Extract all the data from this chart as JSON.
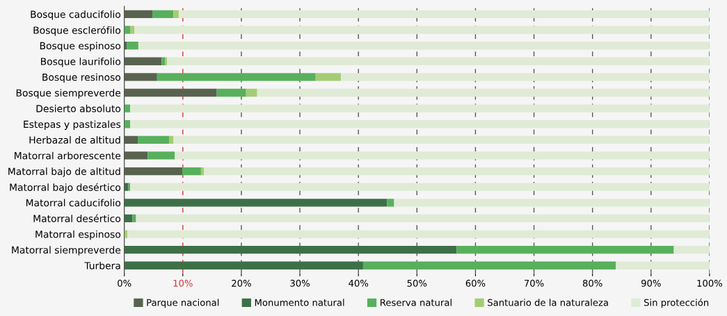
{
  "chart_data": {
    "type": "bar",
    "orientation": "horizontal",
    "stacked": true,
    "categories": [
      "Bosque caducifolio",
      "Bosque esclerófilo",
      "Bosque espinoso",
      "Bosque laurifolio",
      "Bosque resinoso",
      "Bosque siempreverde",
      "Desierto absoluto",
      "Estepas y pastizales",
      "Herbazal de altitud",
      "Matorral arborescente",
      "Matorral bajo de altitud",
      "Matorral bajo desértico",
      "Matorral caducifolio",
      "Matorral desértico",
      "Matorral espinoso",
      "Matorral siempreverde",
      "Turbera"
    ],
    "series": [
      {
        "name": "Parque nacional",
        "color": "#58634f",
        "values": [
          4.8,
          0,
          0.4,
          6.4,
          5.6,
          15.8,
          0,
          0,
          2.3,
          4.0,
          9.9,
          0,
          0,
          0,
          0,
          0,
          0
        ]
      },
      {
        "name": "Monumento natural",
        "color": "#3e7048",
        "values": [
          0,
          0,
          0,
          0,
          0,
          0,
          0,
          0,
          0,
          0,
          0,
          0.7,
          44.9,
          1.4,
          0,
          56.8,
          40.8
        ]
      },
      {
        "name": "Reserva natural",
        "color": "#58b05c",
        "values": [
          3.6,
          1.0,
          2.0,
          0.6,
          27.1,
          5.0,
          1.0,
          1.0,
          5.4,
          4.6,
          3.2,
          0.3,
          1.2,
          0.6,
          0,
          37.1,
          43.2
        ]
      },
      {
        "name": "Santuario de la naturaleza",
        "color": "#a4cc74",
        "values": [
          0.9,
          0.7,
          0,
          0.3,
          4.3,
          1.9,
          0,
          0,
          0.7,
          0,
          0.5,
          0,
          0,
          0,
          0.5,
          0,
          0
        ]
      },
      {
        "name": "Sin protección",
        "color": "#e0ebd6",
        "values": [
          90.7,
          98.3,
          97.6,
          92.7,
          63.0,
          77.3,
          99.0,
          99.0,
          91.6,
          91.4,
          86.4,
          99.0,
          53.9,
          98.0,
          99.5,
          6.1,
          16.0
        ]
      }
    ],
    "xlim": [
      0,
      100
    ],
    "xticks": [
      {
        "value": 0,
        "label": "0%"
      },
      {
        "value": 10,
        "label": "10%"
      },
      {
        "value": 20,
        "label": "20%"
      },
      {
        "value": 30,
        "label": "30%"
      },
      {
        "value": 40,
        "label": "40%"
      },
      {
        "value": 50,
        "label": "50%"
      },
      {
        "value": 60,
        "label": "60%"
      },
      {
        "value": 70,
        "label": "70%"
      },
      {
        "value": 80,
        "label": "80%"
      },
      {
        "value": 90,
        "label": "90%"
      },
      {
        "value": 100,
        "label": "100%"
      }
    ],
    "grid": "x",
    "legend": "bottom",
    "ref_lines": [
      {
        "axis": "x",
        "value": 10,
        "label": null,
        "color": "#d9363e",
        "line_style": "dashed"
      }
    ]
  }
}
